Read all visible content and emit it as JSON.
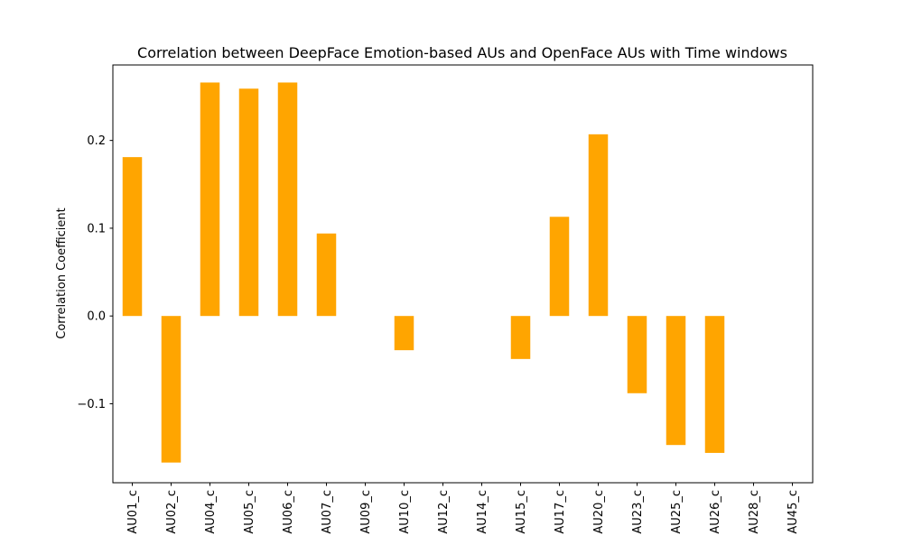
{
  "chart_data": {
    "type": "bar",
    "title": "Correlation between DeepFace Emotion-based AUs and OpenFace AUs with Time windows",
    "xlabel": "",
    "ylabel": "Correlation Coefficient",
    "categories": [
      "AU01_c",
      "AU02_c",
      "AU04_c",
      "AU05_c",
      "AU06_c",
      "AU07_c",
      "AU09_c",
      "AU10_c",
      "AU12_c",
      "AU14_c",
      "AU15_c",
      "AU17_c",
      "AU20_c",
      "AU23_c",
      "AU25_c",
      "AU26_c",
      "AU28_c",
      "AU45_c"
    ],
    "values": [
      0.181,
      -0.167,
      0.266,
      0.259,
      0.266,
      0.094,
      null,
      -0.039,
      null,
      null,
      -0.049,
      0.113,
      0.207,
      -0.088,
      -0.147,
      -0.156,
      null,
      null
    ],
    "ylim": [
      -0.19,
      0.286
    ],
    "yticks": [
      -0.1,
      0.0,
      0.1,
      0.2
    ],
    "ytick_labels": [
      "−0.1",
      "0.0",
      "0.1",
      "0.2"
    ],
    "grid": false,
    "bar_color": "#ffa500",
    "axis_color": "#000000"
  }
}
